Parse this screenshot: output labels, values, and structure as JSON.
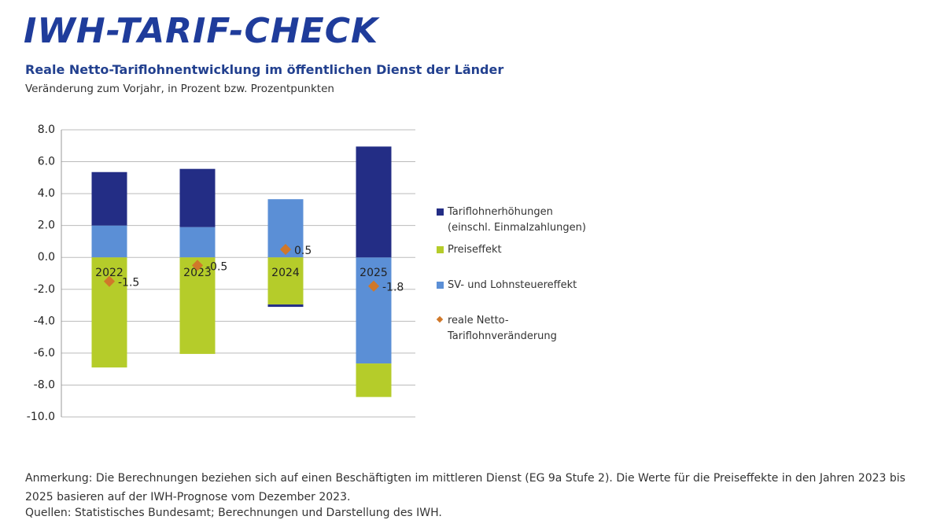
{
  "chart_data": {
    "type": "bar",
    "title": "IWH-TARIF-CHECK",
    "subtitle": "Reale Netto-Tariflohnentwicklung im öffentlichen Dienst der Länder",
    "ylabel": "Veränderung zum Vorjahr, in Prozent bzw. Prozentpunkten",
    "categories": [
      "2022",
      "2023",
      "2024",
      "2025"
    ],
    "series": [
      {
        "name": "Tariflohnerhöhungen (einschl. Einmalzahlungen)",
        "color": "#232d85",
        "values": [
          3.35,
          3.65,
          -0.15,
          6.95
        ]
      },
      {
        "name": "Preiseffekt",
        "color": "#b5cc2a",
        "values": [
          -6.9,
          -6.05,
          -2.95,
          -2.1
        ]
      },
      {
        "name": "SV- und Lohnsteuereffekt",
        "color": "#5b8fd6",
        "values": [
          2.0,
          1.9,
          3.65,
          -6.65
        ]
      },
      {
        "name": "reale Netto-Tariflohnveränderung",
        "color": "#d0782a",
        "marker": "diamond",
        "values": [
          -1.5,
          -0.5,
          0.5,
          -1.8
        ]
      }
    ],
    "ylim": [
      -10,
      8
    ],
    "yticks": [
      {
        "value": -10,
        "label": "-10.0"
      },
      {
        "value": -8,
        "label": "-8.0"
      },
      {
        "value": -6,
        "label": "-6.0"
      },
      {
        "value": -4,
        "label": "-4.0"
      },
      {
        "value": -2,
        "label": "-2.0"
      },
      {
        "value": 0,
        "label": "0.0"
      },
      {
        "value": 2,
        "label": "2.0"
      },
      {
        "value": 4,
        "label": "4.0"
      },
      {
        "value": 6,
        "label": "6.0"
      },
      {
        "value": 8,
        "label": "8.0"
      }
    ],
    "grid": true,
    "legend": "right",
    "note": "Anmerkung: Die Berechnungen beziehen sich auf einen Beschäftigten im mittleren Dienst (EG 9a Stufe 2). Die Werte für die Preiseffekte in den Jahren 2023 bis 2025 basieren auf der IWH-Prognose vom Dezember 2023.",
    "source": "Quellen: Statistisches Bundesamt; Berechnungen und Darstellung des IWH."
  }
}
